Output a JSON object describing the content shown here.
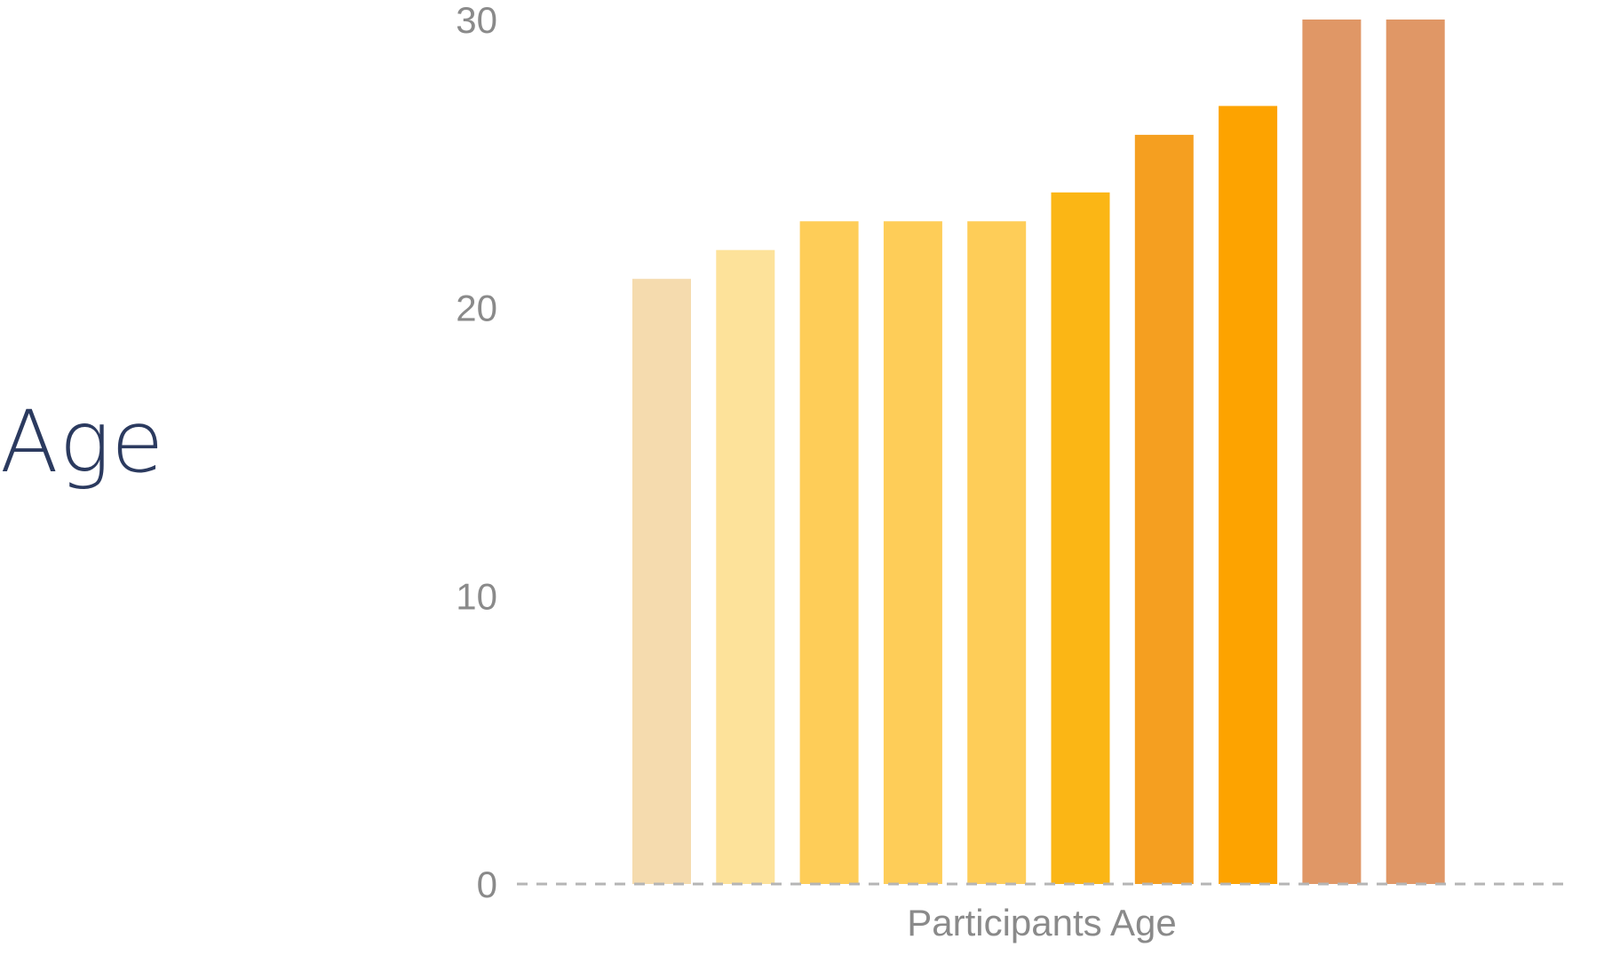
{
  "side_title": "Age",
  "chart_data": {
    "type": "bar",
    "title": "",
    "xlabel": "Participants Age",
    "ylabel": "",
    "ylim": [
      0,
      30
    ],
    "yticks": [
      0,
      10,
      20,
      30
    ],
    "grid": false,
    "legend": "none",
    "values": [
      21,
      22,
      23,
      23,
      23,
      24,
      26,
      27,
      30,
      30
    ],
    "colors": [
      "#f5dbae",
      "#fde29a",
      "#fecd58",
      "#fecd58",
      "#fecd58",
      "#fbb615",
      "#f59f20",
      "#fda300",
      "#e09766",
      "#e09766"
    ],
    "baseline_color": "#b5b5b5"
  }
}
